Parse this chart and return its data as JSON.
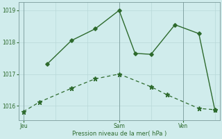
{
  "line_color": "#2d6a2d",
  "bg_color": "#d0ecec",
  "grid_color": "#b8d8d8",
  "spine_color": "#7a9a9a",
  "xlim": [
    -0.3,
    12.3
  ],
  "ylim": [
    1015.55,
    1019.25
  ],
  "yticks": [
    1016,
    1017,
    1018,
    1019
  ],
  "xtick_positions": [
    0,
    6,
    10
  ],
  "xtick_labels": [
    "Jeu",
    "Sam",
    "Ven"
  ],
  "xlabel": "Pression niveau de la mer( hPa )",
  "vlines": [
    0,
    6,
    10
  ],
  "lineA_x": [
    0,
    1,
    3,
    4.5,
    6,
    8,
    9,
    11,
    12
  ],
  "lineA_y": [
    1015.82,
    1016.12,
    1016.55,
    1016.85,
    1017.0,
    1016.6,
    1016.35,
    1015.92,
    1015.88
  ],
  "lineB_x": [
    1.5,
    3,
    4.5,
    6,
    7,
    8,
    9.5,
    11,
    12
  ],
  "lineB_y": [
    1017.32,
    1018.05,
    1018.42,
    1019.0,
    1017.65,
    1017.62,
    1018.55,
    1018.27,
    1015.88
  ]
}
